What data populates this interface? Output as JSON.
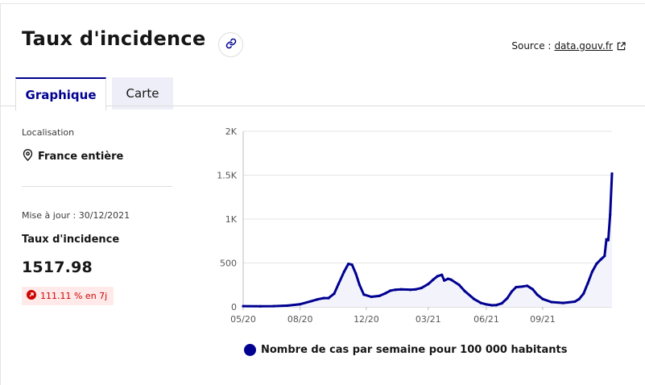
{
  "header": {
    "title": "Taux d'incidence",
    "source_prefix": "Source :",
    "source_link": "data.gouv.fr",
    "link_icon": "link-icon",
    "external_icon": "external-link-icon"
  },
  "tabs": [
    {
      "label": "Graphique",
      "active": true
    },
    {
      "label": "Carte",
      "active": false
    }
  ],
  "sidebar": {
    "location_label": "Localisation",
    "location_icon": "map-pin-icon",
    "location_value": "France entière",
    "update_text": "Mise à jour : 30/12/2021",
    "metric_label": "Taux d'incidence",
    "metric_value": "1517.98",
    "trend_icon": "arrow-up-right-icon",
    "trend_text": "111.11 % en 7j",
    "trend_color": "#ce0500"
  },
  "colors": {
    "accent": "#000091",
    "tab_inactive_bg": "#eeeef8",
    "fill": "#f3f3fb"
  },
  "chart_data": {
    "type": "area",
    "title": "",
    "xlabel": "",
    "ylabel": "",
    "ylim": [
      0,
      2000
    ],
    "xlim": [
      "2020-05-13",
      "2021-12-30"
    ],
    "y_ticks": [
      {
        "value": 0,
        "label": "0"
      },
      {
        "value": 500,
        "label": "500"
      },
      {
        "value": 1000,
        "label": "1K"
      },
      {
        "value": 1500,
        "label": "1.5K"
      },
      {
        "value": 2000,
        "label": "2K"
      }
    ],
    "x_ticks": [
      {
        "date": "2020-05-13",
        "label": "05/20"
      },
      {
        "date": "2020-08-13",
        "label": "08/20"
      },
      {
        "date": "2020-11-28",
        "label": "12/20"
      },
      {
        "date": "2021-03-08",
        "label": "03/21"
      },
      {
        "date": "2021-06-10",
        "label": "06/21"
      },
      {
        "date": "2021-09-09",
        "label": "09/21"
      }
    ],
    "grid": "horizontal",
    "legend_position": "bottom",
    "series": [
      {
        "name": "Nombre de cas par semaine pour 100 000 habitants",
        "color": "#000091",
        "points": [
          [
            "2020-05-13",
            8
          ],
          [
            "2020-06-10",
            6
          ],
          [
            "2020-07-01",
            8
          ],
          [
            "2020-07-24",
            15
          ],
          [
            "2020-08-13",
            30
          ],
          [
            "2020-08-31",
            65
          ],
          [
            "2020-09-10",
            85
          ],
          [
            "2020-09-20",
            100
          ],
          [
            "2020-09-28",
            100
          ],
          [
            "2020-10-07",
            150
          ],
          [
            "2020-10-14",
            260
          ],
          [
            "2020-10-23",
            400
          ],
          [
            "2020-10-30",
            490
          ],
          [
            "2020-11-05",
            480
          ],
          [
            "2020-11-11",
            380
          ],
          [
            "2020-11-17",
            250
          ],
          [
            "2020-11-24",
            140
          ],
          [
            "2020-12-06",
            115
          ],
          [
            "2020-12-19",
            125
          ],
          [
            "2020-12-29",
            155
          ],
          [
            "2021-01-06",
            185
          ],
          [
            "2021-01-14",
            195
          ],
          [
            "2021-01-23",
            200
          ],
          [
            "2021-02-07",
            195
          ],
          [
            "2021-02-16",
            200
          ],
          [
            "2021-02-25",
            215
          ],
          [
            "2021-03-08",
            260
          ],
          [
            "2021-03-16",
            310
          ],
          [
            "2021-03-23",
            350
          ],
          [
            "2021-03-30",
            365
          ],
          [
            "2021-04-03",
            300
          ],
          [
            "2021-04-09",
            320
          ],
          [
            "2021-04-14",
            310
          ],
          [
            "2021-04-27",
            250
          ],
          [
            "2021-05-06",
            180
          ],
          [
            "2021-05-21",
            90
          ],
          [
            "2021-06-01",
            45
          ],
          [
            "2021-06-10",
            28
          ],
          [
            "2021-06-19",
            18
          ],
          [
            "2021-06-26",
            20
          ],
          [
            "2021-07-05",
            40
          ],
          [
            "2021-07-14",
            100
          ],
          [
            "2021-07-21",
            175
          ],
          [
            "2021-07-28",
            225
          ],
          [
            "2021-08-06",
            230
          ],
          [
            "2021-08-15",
            240
          ],
          [
            "2021-08-24",
            200
          ],
          [
            "2021-08-31",
            140
          ],
          [
            "2021-09-09",
            90
          ],
          [
            "2021-09-23",
            55
          ],
          [
            "2021-10-12",
            45
          ],
          [
            "2021-10-31",
            60
          ],
          [
            "2021-11-07",
            90
          ],
          [
            "2021-11-14",
            150
          ],
          [
            "2021-11-21",
            270
          ],
          [
            "2021-11-28",
            400
          ],
          [
            "2021-12-05",
            490
          ],
          [
            "2021-12-12",
            540
          ],
          [
            "2021-12-18",
            580
          ],
          [
            "2021-12-21",
            770
          ],
          [
            "2021-12-24",
            760
          ],
          [
            "2021-12-27",
            1050
          ],
          [
            "2021-12-30",
            1517.98
          ]
        ]
      }
    ]
  }
}
